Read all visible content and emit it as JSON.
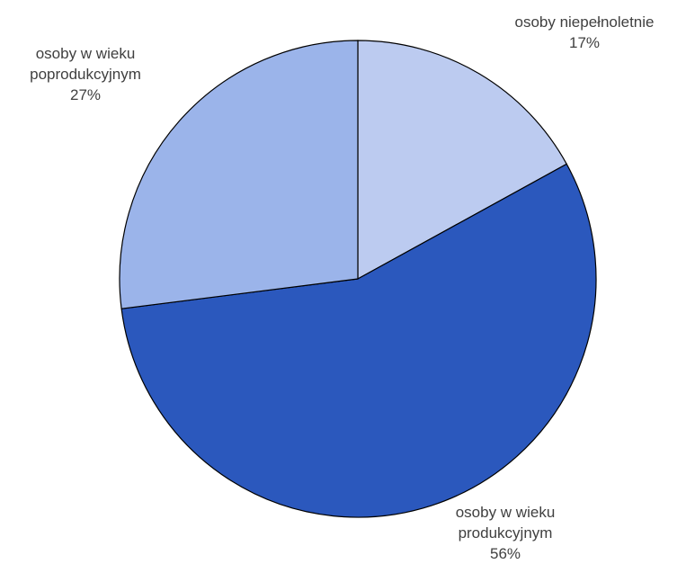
{
  "chart_data": {
    "type": "pie",
    "title": "",
    "start_angle_deg": 0,
    "direction": "clockwise",
    "slices": [
      {
        "label_lines": [
          "osoby niepełnoletnie"
        ],
        "value": 17,
        "value_label": "17%",
        "color": "#bccbf0"
      },
      {
        "label_lines": [
          "osoby w wieku",
          "produkcyjnym"
        ],
        "value": 56,
        "value_label": "56%",
        "color": "#2b58bd"
      },
      {
        "label_lines": [
          "osoby w wieku",
          "poprodukcyjnym"
        ],
        "value": 27,
        "value_label": "27%",
        "color": "#9bb4ea"
      }
    ]
  }
}
